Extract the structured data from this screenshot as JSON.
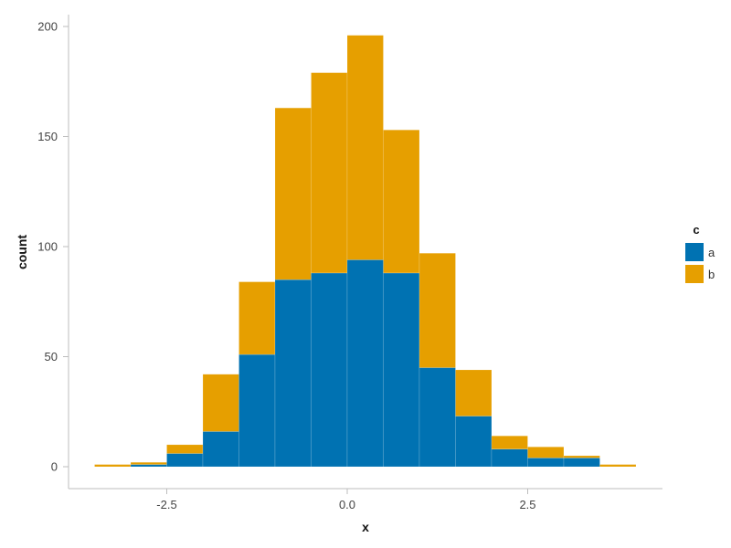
{
  "chart_data": {
    "type": "bar",
    "stacked": true,
    "histogram": true,
    "bin_width": 0.5,
    "bin_starts": [
      -3.5,
      -3.0,
      -2.5,
      -2.0,
      -1.5,
      -1.0,
      -0.5,
      0.0,
      0.5,
      1.0,
      1.5,
      2.0,
      2.5,
      3.0,
      3.5
    ],
    "series": [
      {
        "name": "a",
        "color": "#0072B2",
        "values": [
          0,
          1,
          6,
          16,
          51,
          85,
          88,
          94,
          88,
          45,
          23,
          8,
          4,
          4,
          0
        ]
      },
      {
        "name": "b",
        "color": "#E69F00",
        "values": [
          1,
          1,
          4,
          26,
          33,
          78,
          91,
          102,
          65,
          52,
          21,
          6,
          5,
          1,
          1
        ]
      }
    ],
    "xlabel": "x",
    "ylabel": "count",
    "xlim": [
      -3.5,
      4.0
    ],
    "ylim": [
      0,
      200
    ],
    "xticks": [
      -2.5,
      0.0,
      2.5
    ],
    "xtick_labels": [
      "-2.5",
      "0.0",
      "2.5"
    ],
    "yticks": [
      0,
      50,
      100,
      150,
      200
    ],
    "ytick_labels": [
      "0",
      "50",
      "100",
      "150",
      "200"
    ],
    "legend": {
      "title": "c",
      "position": "right"
    },
    "grid": false
  }
}
